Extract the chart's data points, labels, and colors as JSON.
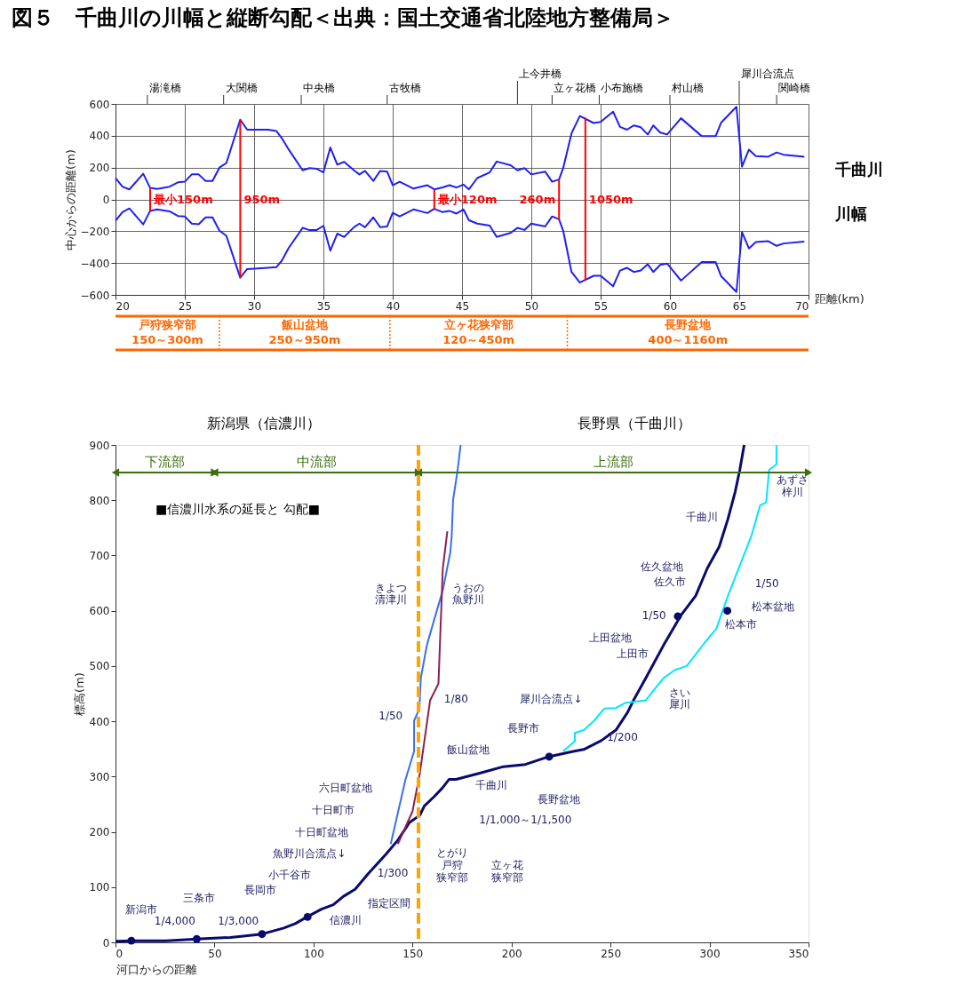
{
  "chart_data": [
    {
      "type": "line",
      "title": "図５　千曲川の川幅と縦断勾配＜出典：国土交通省北陸地方整備局＞",
      "xlabel": "距離(km)",
      "ylabel": "中心からの距離(m)",
      "xlim": [
        20,
        70
      ],
      "ylim": [
        -600,
        600
      ],
      "xticks": [
        20,
        25,
        30,
        35,
        40,
        45,
        50,
        55,
        60,
        65,
        70
      ],
      "yticks": [
        -600,
        -400,
        -200,
        0,
        200,
        400,
        600
      ],
      "grid": true,
      "x": [
        20,
        20.5,
        21,
        22,
        22.5,
        23,
        23.9,
        24.5,
        25,
        25.5,
        26,
        26.5,
        27,
        27.5,
        28,
        29,
        29.5,
        31,
        31.6,
        32,
        32.5,
        33.5,
        34,
        34.5,
        35,
        35.5,
        36,
        36.5,
        37.2,
        37.6,
        38,
        38.6,
        39.1,
        39.6,
        40,
        40.5,
        41.5,
        42.5,
        43,
        43.6,
        44.1,
        44.6,
        45.1,
        45.5,
        46.1,
        47,
        47.5,
        48.5,
        49,
        49.5,
        50,
        51,
        51.5,
        52,
        52.3,
        52.9,
        53.5,
        54.5,
        55,
        55.9,
        56.4,
        56.9,
        57.4,
        57.9,
        58.4,
        58.8,
        59.3,
        59.8,
        60.8,
        62.3,
        63.3,
        63.7,
        64.8,
        65.2,
        65.7,
        66.2,
        67.1,
        67.7,
        68.2,
        69.7
      ],
      "series": [
        {
          "color": "#2020f0",
          "values": [
            134,
            80,
            63,
            161,
            72,
            66,
            80,
            107,
            111,
            157,
            157,
            116,
            116,
            200,
            229,
            501,
            438,
            438,
            430,
            385,
            313,
            183,
            197,
            193,
            170,
            326,
            218,
            236,
            183,
            157,
            179,
            116,
            179,
            175,
            89,
            111,
            68,
            89,
            63,
            75,
            89,
            75,
            93,
            63,
            134,
            170,
            238,
            215,
            183,
            197,
            157,
            175,
            111,
            125,
            197,
            415,
            524,
            480,
            487,
            551,
            456,
            438,
            465,
            453,
            408,
            465,
            420,
            408,
            510,
            397,
            397,
            483,
            582,
            206,
            313,
            272,
            268,
            295,
            281,
            268
          ]
        },
        {
          "color": "#2020f0",
          "values": [
            -134,
            -80,
            -57,
            -157,
            -72,
            -63,
            -75,
            -104,
            -107,
            -152,
            -156,
            -113,
            -113,
            -197,
            -229,
            -492,
            -438,
            -430,
            -426,
            -385,
            -304,
            -179,
            -193,
            -193,
            -166,
            -322,
            -215,
            -236,
            -175,
            -152,
            -175,
            -113,
            -175,
            -170,
            -84,
            -107,
            -63,
            -86,
            -59,
            -80,
            -72,
            -89,
            -63,
            -131,
            -152,
            -165,
            -236,
            -211,
            -179,
            -192,
            -152,
            -170,
            -107,
            -125,
            -197,
            -456,
            -523,
            -480,
            -480,
            -546,
            -447,
            -430,
            -456,
            -447,
            -408,
            -456,
            -412,
            -403,
            -510,
            -394,
            -394,
            -483,
            -582,
            -206,
            -308,
            -268,
            -263,
            -292,
            -277,
            -265
          ]
        },
        {
          "color": "#ff0000",
          "x": [
            22.5,
            22.5
          ],
          "values": [
            72,
            -72
          ]
        },
        {
          "color": "#ff0000",
          "x": [
            29,
            29
          ],
          "values": [
            501,
            -492
          ]
        },
        {
          "color": "#ff0000",
          "x": [
            43,
            43
          ],
          "values": [
            63,
            -59
          ]
        },
        {
          "color": "#ff0000",
          "x": [
            52,
            52
          ],
          "values": [
            125,
            -125
          ]
        },
        {
          "color": "#ff0000",
          "x": [
            53.9,
            53.9
          ],
          "values": [
            514,
            -510
          ]
        }
      ],
      "annotations": [
        "湯滝橋",
        "大関橋",
        "中央橋",
        "古牧橋",
        "上今井橋",
        "立ヶ花橋",
        "小布施橋",
        "村山橋",
        "犀川合流点",
        "関崎橋",
        "千曲川",
        "川幅",
        "戸狩狭窄部",
        "150～300m",
        "飯山盆地",
        "250～950m",
        "立ヶ花狭窄部",
        "120～450m",
        "長野盆地",
        "400～1160m",
        {
          "text": "最小150m",
          "x": 22.5,
          "y": 0
        },
        {
          "text": "950m",
          "x": 29,
          "y": 0
        },
        {
          "text": "最小120m",
          "x": 43,
          "y": 0
        },
        {
          "text": "260m",
          "x": 52,
          "y": 0
        },
        {
          "text": "1050m",
          "x": 53.9,
          "y": 0
        }
      ]
    },
    {
      "type": "line",
      "subtitle": "■信濃川水系の延長と 勾配■",
      "xlabel": "河口からの距離",
      "ylabel": "標高(m)",
      "xlim": [
        0,
        350
      ],
      "ylim": [
        0,
        900
      ],
      "xticks": [
        0,
        50,
        100,
        150,
        200,
        250,
        300,
        350
      ],
      "yticks": [
        0,
        100,
        200,
        300,
        400,
        500,
        600,
        700,
        800,
        900
      ],
      "grid": false,
      "series": [
        {
          "color": "#0a0a6e",
          "x": [
            0,
            7.9,
            25.6,
            41,
            58,
            74,
            85,
            90.8,
            96.7,
            104,
            110,
            115,
            121,
            127.8,
            136.7,
            142.6,
            148.5,
            153.7,
            156,
            161,
            165,
            168.5,
            172,
            184.8,
            195.9,
            207,
            218.8,
            230.6,
            236.5,
            245.3,
            252.7,
            258.6,
            261.6,
            267.8,
            276.7,
            285.6,
            293,
            298.9,
            304.9,
            309.3,
            313,
            315.3,
            317.5
          ],
          "values": [
            2,
            3,
            3,
            6,
            9,
            15,
            26,
            34,
            46,
            60,
            68,
            83,
            96,
            125,
            160,
            185,
            217,
            230,
            247,
            264,
            279,
            295,
            295,
            307,
            318,
            322,
            336,
            345,
            349,
            365,
            384,
            416,
            438,
            478,
            537,
            592,
            627,
            677,
            716,
            766,
            816,
            855,
            900
          ]
        },
        {
          "color": "#3a6ff0",
          "x": [
            139,
            141.2,
            146.4,
            150.8,
            150.8,
            153.5,
            154.2,
            157.2,
            161.6,
            165.3,
            169.1,
            169.8,
            170.5,
            172.8,
            174.3
          ],
          "values": [
            178,
            212,
            294,
            346,
            401,
            423,
            478,
            537,
            592,
            637,
            706,
            736,
            801,
            855,
            900
          ]
        },
        {
          "color": "#8b2252",
          "x": [
            142.6,
            150,
            153.7,
            158.9,
            163.1,
            165.3,
            167.6
          ],
          "values": [
            178,
            237,
            306,
            438,
            468,
            677,
            744
          ]
        },
        {
          "color": "#00e5ff",
          "x": [
            226.1,
            232,
            232,
            236.5,
            241.7,
            246.8,
            252.7,
            257.2,
            267.8,
            276.7,
            282.6,
            288.5,
            297.5,
            303.4,
            309.3,
            321.2,
            325.6,
            328.6,
            330.1,
            333.8,
            333.8
          ],
          "values": [
            346,
            364,
            379,
            384,
            401,
            423,
            424,
            433,
            438,
            478,
            493,
            500,
            542,
            567,
            627,
            736,
            791,
            796,
            855,
            865,
            900
          ]
        },
        {
          "type": "scatter",
          "marker": "circle",
          "color": "#0a0a6e",
          "x": [
            8,
            41,
            74,
            97,
            219,
            284,
            309
          ],
          "values": [
            3,
            6,
            15,
            46,
            336,
            590,
            600
          ]
        },
        {
          "name": "下流部",
          "marker": "triangle",
          "color": "#3b6e0f",
          "x": [
            0,
            50
          ],
          "values": [
            850,
            850
          ]
        },
        {
          "name": "中流部",
          "marker": "triangle",
          "color": "#3b6e0f",
          "x": [
            50,
            153
          ],
          "values": [
            850,
            850
          ]
        },
        {
          "name": "上流部",
          "marker": "triangle",
          "color": "#3b6e0f",
          "x": [
            153,
            350
          ],
          "values": [
            850,
            850
          ]
        }
      ],
      "ref_lines": [
        {
          "axis": "x",
          "value": 153,
          "color": "#ffa500",
          "line_style": "dashed"
        }
      ],
      "annotations": [
        "新潟市",
        "1/4,000",
        "三条市",
        "1/3,000",
        "長岡市",
        "小千谷市",
        "信濃川",
        "魚野川合流点↓",
        "十日町盆地",
        "十日町市",
        "六日町盆地",
        "1/300",
        "指定区間",
        "とがり",
        "戸狩",
        "狭窄部",
        "立ヶ花",
        "狭窄部",
        "1/1,000～1/1,500",
        "飯山盆地",
        "千曲川",
        "長野盆地",
        "長野市",
        "犀川合流点↓",
        "1/200",
        "さい",
        "犀川",
        "上田市",
        "上田盆地",
        "1/50",
        "佐久市",
        "佐久盆地",
        "1/50",
        "松本市",
        "松本盆地",
        "千曲川",
        "あずさ",
        "梓川",
        "1/50",
        "1/80",
        "きよつ",
        "清津川",
        "うおの",
        "魚野川",
        "新潟県（信濃川）",
        "長野県（千曲川）"
      ]
    }
  ]
}
